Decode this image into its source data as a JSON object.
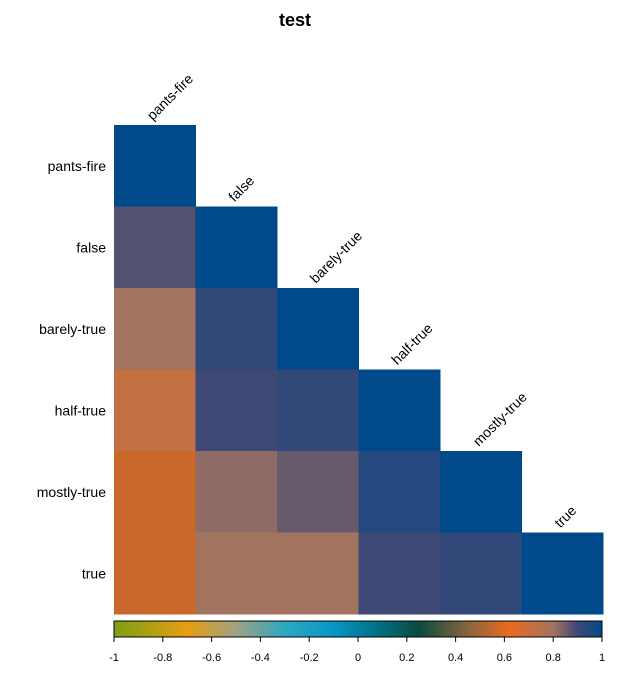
{
  "chart_data": {
    "type": "heatmap",
    "title": "test",
    "row_labels": [
      "pants-fire",
      "false",
      "barely-true",
      "half-true",
      "mostly-true",
      "true"
    ],
    "column_labels": [
      "pants-fire",
      "false",
      "barely-true",
      "half-true",
      "mostly-true",
      "true"
    ],
    "triangle": "lower",
    "matrix": [
      [
        1.0,
        null,
        null,
        null,
        null,
        null
      ],
      [
        0.88,
        1.0,
        null,
        null,
        null,
        null
      ],
      [
        0.8,
        0.92,
        1.0,
        null,
        null,
        null
      ],
      [
        0.72,
        0.9,
        0.92,
        1.0,
        null,
        null
      ],
      [
        0.56,
        0.82,
        0.86,
        0.94,
        1.0,
        null
      ],
      [
        0.56,
        0.8,
        0.8,
        0.9,
        0.92,
        1.0
      ]
    ],
    "colorbar": {
      "min": -1,
      "max": 1,
      "ticks": [
        "-1",
        "-0.8",
        "-0.6",
        "-0.4",
        "-0.2",
        "0",
        "0.2",
        "0.4",
        "0.6",
        "0.8",
        "1"
      ],
      "stops": [
        {
          "value": -1.0,
          "color": "#7aa012"
        },
        {
          "value": -0.7,
          "color": "#e89e10"
        },
        {
          "value": -0.5,
          "color": "#9ea282"
        },
        {
          "value": -0.3,
          "color": "#2ea8c0"
        },
        {
          "value": -0.1,
          "color": "#0896c6"
        },
        {
          "value": 0.1,
          "color": "#006c7e"
        },
        {
          "value": 0.25,
          "color": "#0c4a3e"
        },
        {
          "value": 0.45,
          "color": "#886440"
        },
        {
          "value": 0.62,
          "color": "#ec6a1e"
        },
        {
          "value": 0.8,
          "color": "#a27460"
        },
        {
          "value": 0.9,
          "color": "#3e4874"
        },
        {
          "value": 1.0,
          "color": "#004a8c"
        }
      ]
    }
  }
}
